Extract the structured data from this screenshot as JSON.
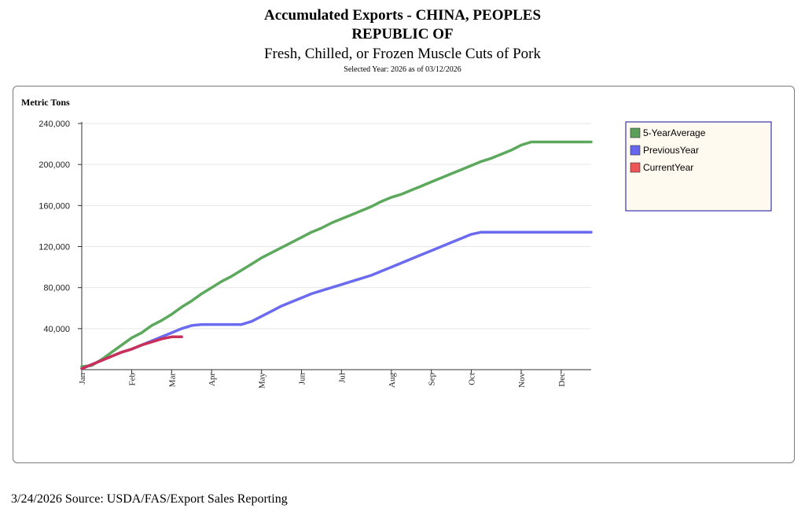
{
  "header": {
    "title_line1": "Accumulated Exports - CHINA, PEOPLES",
    "title_line2": "REPUBLIC OF",
    "subtitle": "Fresh, Chilled, or Frozen Muscle Cuts of Pork",
    "selected_year": "Selected Year: 2026 as of 03/12/2026"
  },
  "footer": {
    "text": "3/24/2026 Source: USDA/FAS/Export Sales Reporting"
  },
  "chart_data": {
    "type": "line",
    "ylabel": "Metric Tons",
    "xlabel": "",
    "ylim": [
      0,
      240000
    ],
    "yticks": [
      40000,
      80000,
      120000,
      160000,
      200000,
      240000
    ],
    "ytick_labels": [
      "40,000",
      "80,000",
      "120,000",
      "160,000",
      "200,000",
      "240,000"
    ],
    "xlim": [
      1,
      52
    ],
    "xticks": [
      {
        "label": "Jan",
        "week": 1
      },
      {
        "label": "Feb",
        "week": 6
      },
      {
        "label": "Mar",
        "week": 10
      },
      {
        "label": "Apr",
        "week": 14
      },
      {
        "label": "May",
        "week": 19
      },
      {
        "label": "Jun",
        "week": 23
      },
      {
        "label": "Jul",
        "week": 27
      },
      {
        "label": "Aug",
        "week": 32
      },
      {
        "label": "Sep",
        "week": 36
      },
      {
        "label": "Oct",
        "week": 40
      },
      {
        "label": "Nov",
        "week": 45
      },
      {
        "label": "Dec",
        "week": 49
      }
    ],
    "legend_position": "top-right",
    "series": [
      {
        "name": "5-YearAverage",
        "color": "#5ca85c",
        "legend_color": "#5aa05a",
        "weeks": [
          1,
          2,
          3,
          4,
          5,
          6,
          7,
          8,
          9,
          10,
          11,
          12,
          13,
          14,
          15,
          16,
          17,
          18,
          19,
          20,
          21,
          22,
          23,
          24,
          25,
          26,
          27,
          28,
          29,
          30,
          31,
          32,
          33,
          34,
          35,
          36,
          37,
          38,
          39,
          40,
          41,
          42,
          43,
          44,
          45,
          46,
          47,
          48,
          49,
          50,
          51,
          52
        ],
        "values": [
          3000,
          4000,
          10000,
          17000,
          24000,
          31000,
          36000,
          43000,
          48000,
          54000,
          61000,
          67000,
          74000,
          80000,
          86000,
          91000,
          97000,
          103000,
          109000,
          114000,
          119000,
          124000,
          129000,
          134000,
          138000,
          143000,
          147000,
          151000,
          155000,
          159000,
          164000,
          168000,
          171000,
          175000,
          179000,
          183000,
          187000,
          191000,
          195000,
          199000,
          203000,
          206000,
          210000,
          214000,
          219000,
          222000,
          222000,
          222000,
          222000,
          222000,
          222000,
          222000
        ]
      },
      {
        "name": "PreviousYear",
        "color": "#6b6bef",
        "legend_color": "#6666ee",
        "weeks": [
          1,
          2,
          3,
          4,
          5,
          6,
          7,
          8,
          9,
          10,
          11,
          12,
          13,
          14,
          15,
          16,
          17,
          18,
          19,
          20,
          21,
          22,
          23,
          24,
          25,
          26,
          27,
          28,
          29,
          30,
          31,
          32,
          33,
          34,
          35,
          36,
          37,
          38,
          39,
          40,
          41,
          42,
          43,
          44,
          45,
          46,
          47,
          48,
          49,
          50,
          51,
          52
        ],
        "values": [
          1000,
          5000,
          9000,
          13000,
          17000,
          20000,
          24000,
          28000,
          32000,
          36000,
          40000,
          43000,
          44000,
          44000,
          44000,
          44000,
          44000,
          47000,
          52000,
          57000,
          62000,
          66000,
          70000,
          74000,
          77000,
          80000,
          83000,
          86000,
          89000,
          92000,
          96000,
          100000,
          104000,
          108000,
          112000,
          116000,
          120000,
          124000,
          128000,
          132000,
          134000,
          134000,
          134000,
          134000,
          134000,
          134000,
          134000,
          134000,
          134000,
          134000,
          134000,
          134000
        ]
      },
      {
        "name": "CurrentYear",
        "color": "#c8305a",
        "legend_color": "#ee5555",
        "weeks": [
          1,
          2,
          3,
          4,
          5,
          6,
          7,
          8,
          9,
          10,
          11
        ],
        "values": [
          1000,
          5000,
          9000,
          13000,
          17000,
          20000,
          24000,
          27000,
          30000,
          32000,
          32000
        ]
      }
    ]
  }
}
